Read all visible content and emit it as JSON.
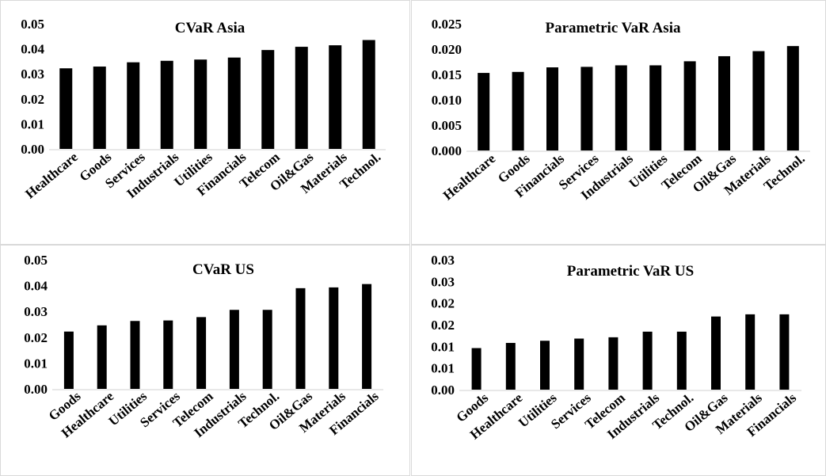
{
  "chart_data": [
    {
      "type": "bar",
      "title": "CVaR Asia",
      "categories": [
        "Healthcare",
        "Goods",
        "Services",
        "Industrials",
        "Utilities",
        "Financials",
        "Telecom",
        "Oil&Gas",
        "Materials",
        "Technol."
      ],
      "values": [
        0.0322,
        0.0329,
        0.0346,
        0.0352,
        0.0357,
        0.0365,
        0.0395,
        0.0408,
        0.0414,
        0.0435
      ],
      "ylim": [
        0,
        0.05
      ],
      "yticks": [
        "0.00",
        "0.01",
        "0.02",
        "0.03",
        "0.04",
        "0.05"
      ],
      "color": "#000000",
      "grid": false,
      "legend": false
    },
    {
      "type": "bar",
      "title": "Parametric VaR Asia",
      "categories": [
        "Healthcare",
        "Goods",
        "Financials",
        "Services",
        "Industrials",
        "Utilities",
        "Telecom",
        "Oil&Gas",
        "Materials",
        "Technol."
      ],
      "values": [
        0.0153,
        0.0155,
        0.0164,
        0.0165,
        0.0168,
        0.0168,
        0.0176,
        0.0186,
        0.0196,
        0.0206
      ],
      "ylim": [
        0,
        0.025
      ],
      "yticks": [
        "0.000",
        "0.005",
        "0.010",
        "0.015",
        "0.020",
        "0.025"
      ],
      "color": "#000000",
      "grid": false,
      "legend": false
    },
    {
      "type": "bar",
      "title": "CVaR US",
      "categories": [
        "Goods",
        "Healthcare",
        "Utilities",
        "Services",
        "Telecom",
        "Industrials",
        "Technol.",
        "Oil&Gas",
        "Materials",
        "Financials"
      ],
      "values": [
        0.0222,
        0.0246,
        0.0263,
        0.0265,
        0.0278,
        0.0306,
        0.0306,
        0.039,
        0.0393,
        0.0406
      ],
      "ylim": [
        0,
        0.05
      ],
      "yticks": [
        "0.00",
        "0.01",
        "0.02",
        "0.03",
        "0.04",
        "0.05"
      ],
      "color": "#000000",
      "grid": false,
      "legend": false
    },
    {
      "type": "bar",
      "title": "Parametric VaR US",
      "categories": [
        "Goods",
        "Healthcare",
        "Utilities",
        "Services",
        "Telecom",
        "Industrials",
        "Technol.",
        "Oil&Gas",
        "Materials",
        "Financials"
      ],
      "values": [
        0.0096,
        0.0108,
        0.0113,
        0.0118,
        0.0121,
        0.0134,
        0.0134,
        0.0169,
        0.0174,
        0.0174
      ],
      "ylim": [
        0,
        0.03
      ],
      "yticks": [
        "0.00",
        "0.01",
        "0.01",
        "0.02",
        "0.02",
        "0.03",
        "0.03"
      ],
      "color": "#000000",
      "grid": false,
      "legend": false
    }
  ]
}
